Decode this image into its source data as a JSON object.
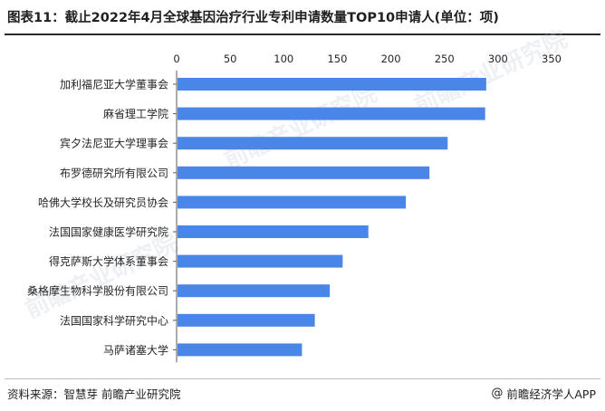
{
  "header": {
    "title": "图表11：截止2022年4月全球基因治疗行业专利申请数量TOP10申请人(单位：项)"
  },
  "footer": {
    "source": "资料来源：智慧芽 前瞻产业研究院",
    "brand_symbol": "@",
    "brand": "前瞻经济学人APP"
  },
  "watermarks": [
    "前瞻产业研究院",
    "前瞻产业研究院",
    "前瞻产业研究院"
  ],
  "colors": {
    "bar": "#4a86e8",
    "axis": "#595959",
    "text": "#262626"
  },
  "chart_data": {
    "type": "bar",
    "orientation": "horizontal",
    "title": "图表11：截止2022年4月全球基因治疗行业专利申请数量TOP10申请人(单位：项)",
    "xlim": [
      0,
      350
    ],
    "xticks": [
      0,
      50,
      100,
      150,
      200,
      250,
      300,
      350
    ],
    "xaxis_position": "top",
    "grid": false,
    "categories": [
      "加利福尼亚大学董事会",
      "麻省理工学院",
      "宾夕法尼亚大学理事会",
      "布罗德研究所有限公司",
      "哈佛大学校长及研究员协会",
      "法国国家健康医学研究院",
      "得克萨斯大学体系董事会",
      "桑格摩生物科学股份有限公司",
      "法国国家科学研究中心",
      "马萨诸塞大学"
    ],
    "values": [
      289,
      288,
      253,
      236,
      214,
      179,
      155,
      143,
      129,
      117
    ]
  }
}
